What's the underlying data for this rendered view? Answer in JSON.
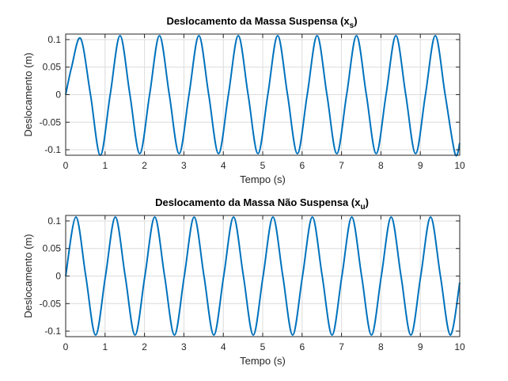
{
  "chart_data": [
    {
      "type": "line",
      "title": "Deslocamento da Massa Suspensa (x",
      "title_subscript": "s",
      "title_suffix": ")",
      "xlabel": "Tempo (s)",
      "ylabel": "Deslocamento (m)",
      "xlim": [
        0,
        10
      ],
      "ylim": [
        -0.11,
        0.11
      ],
      "xticks": [
        "0",
        "1",
        "2",
        "3",
        "4",
        "5",
        "6",
        "7",
        "8",
        "9",
        "10"
      ],
      "yticks": [
        "-0.1",
        "-0.05",
        "0",
        "0.05",
        "0.1"
      ],
      "grid": true,
      "color": "#0072BD",
      "series": [
        {
          "x": [
            0,
            0.15,
            0.38,
            0.63,
            0.88,
            1.13,
            1.38,
            1.63,
            1.88,
            2.13,
            2.38,
            2.63,
            2.88,
            3.13,
            3.38,
            3.63,
            3.88,
            4.13,
            4.38,
            4.63,
            4.88,
            5.13,
            5.38,
            5.63,
            5.88,
            6.13,
            6.38,
            6.63,
            6.88,
            7.13,
            7.38,
            7.63,
            7.88,
            8.13,
            8.38,
            8.63,
            8.88,
            9.13,
            9.38,
            9.63,
            9.88,
            10.0
          ],
          "y": [
            0,
            0.05,
            0.102,
            0.0,
            -0.11,
            0.0,
            0.107,
            0.0,
            -0.107,
            0.0,
            0.107,
            0.0,
            -0.107,
            0.0,
            0.107,
            0.0,
            -0.107,
            0.0,
            0.107,
            0.0,
            -0.107,
            0.0,
            0.107,
            0.0,
            -0.107,
            0.0,
            0.107,
            0.0,
            -0.107,
            0.0,
            0.107,
            0.0,
            -0.107,
            0.0,
            0.107,
            0.0,
            -0.107,
            0.0,
            0.107,
            0.0,
            -0.107,
            -0.088
          ]
        }
      ]
    },
    {
      "type": "line",
      "title": "Deslocamento da Massa Não Suspensa (x",
      "title_subscript": "u",
      "title_suffix": ")",
      "xlabel": "Tempo (s)",
      "ylabel": "Deslocamento (m)",
      "xlim": [
        0,
        10
      ],
      "ylim": [
        -0.11,
        0.11
      ],
      "xticks": [
        "0",
        "1",
        "2",
        "3",
        "4",
        "5",
        "6",
        "7",
        "8",
        "9",
        "10"
      ],
      "yticks": [
        "-0.1",
        "-0.05",
        "0",
        "0.05",
        "0.1"
      ],
      "grid": true,
      "color": "#0072BD",
      "series": [
        {
          "x": [
            0,
            0.26,
            0.51,
            0.76,
            1.01,
            1.26,
            1.51,
            1.76,
            2.01,
            2.26,
            2.51,
            2.76,
            3.01,
            3.26,
            3.51,
            3.76,
            4.01,
            4.26,
            4.51,
            4.76,
            5.01,
            5.26,
            5.51,
            5.76,
            6.01,
            6.26,
            6.51,
            6.76,
            7.01,
            7.26,
            7.51,
            7.76,
            8.01,
            8.26,
            8.51,
            8.76,
            9.01,
            9.26,
            9.51,
            9.76,
            10.0
          ],
          "y": [
            0,
            0.107,
            0.0,
            -0.107,
            0.0,
            0.107,
            0.0,
            -0.107,
            0.0,
            0.107,
            0.0,
            -0.107,
            0.0,
            0.107,
            0.0,
            -0.107,
            0.0,
            0.107,
            0.0,
            -0.107,
            0.0,
            0.107,
            0.0,
            -0.107,
            0.0,
            0.107,
            0.0,
            -0.107,
            0.0,
            0.107,
            0.0,
            -0.107,
            0.0,
            0.107,
            0.0,
            -0.107,
            0.0,
            0.107,
            0.0,
            -0.107,
            -0.012
          ]
        }
      ]
    }
  ]
}
